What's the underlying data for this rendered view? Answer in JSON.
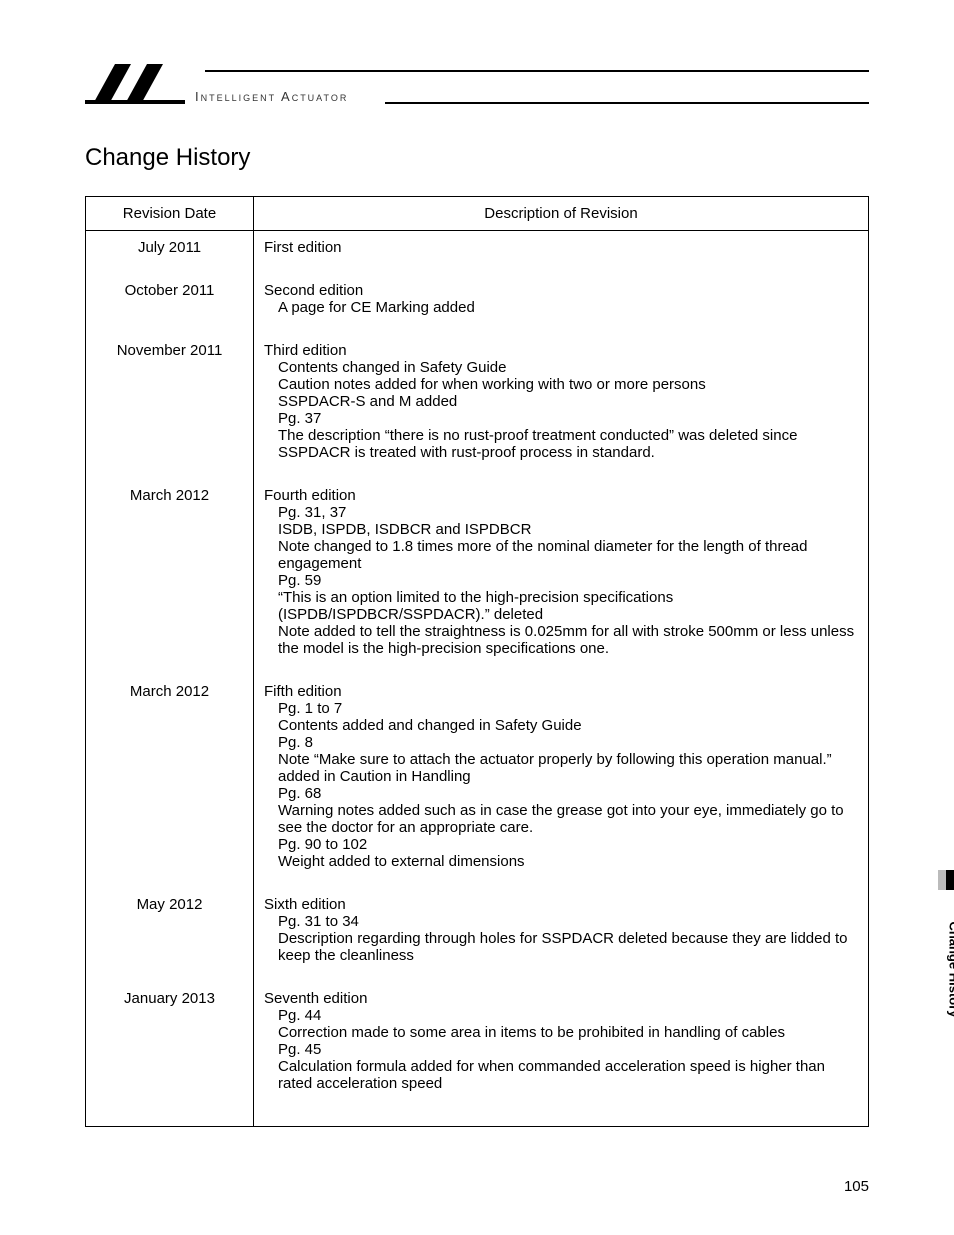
{
  "brand": "Intelligent Actuator",
  "page_title": "Change History",
  "side_tab_label": "Change History",
  "page_number": "105",
  "columns": {
    "date": "Revision Date",
    "desc": "Description of Revision"
  },
  "revisions": [
    {
      "date": "July 2011",
      "head": "First edition",
      "lines": []
    },
    {
      "date": "October 2011",
      "head": "Second edition",
      "lines": [
        "A page for CE Marking added"
      ]
    },
    {
      "date": "November 2011",
      "head": "Third edition",
      "lines": [
        "Contents changed in Safety Guide",
        "Caution notes added for when working with two or more persons",
        "SSPDACR-S and M added",
        "Pg. 37",
        "The description “there is no rust-proof treatment conducted” was deleted since SSPDACR is treated with rust-proof process in standard."
      ]
    },
    {
      "date": "March 2012",
      "head": "Fourth edition",
      "lines": [
        "Pg. 31, 37",
        "ISDB, ISPDB, ISDBCR and ISPDBCR",
        "Note changed to 1.8 times more of the nominal diameter for the length of thread engagement",
        "Pg. 59",
        "“This is an option limited to the high-precision specifications (ISPDB/ISPDBCR/SSPDACR).” deleted",
        "Note added to tell the straightness is 0.025mm for all with stroke 500mm or less unless the model is the high-precision specifications one."
      ]
    },
    {
      "date": "March 2012",
      "head": "Fifth edition",
      "lines": [
        "Pg. 1 to 7",
        "Contents added and changed in Safety Guide",
        "Pg. 8",
        "Note “Make sure to attach the actuator properly by following this operation manual.” added in Caution in Handling",
        "Pg. 68",
        "Warning notes added such as in case the grease got into your eye, immediately go to see the doctor for an appropriate care.",
        "Pg. 90 to 102",
        "Weight added to external dimensions"
      ]
    },
    {
      "date": "May 2012",
      "head": "Sixth edition",
      "lines": [
        "Pg. 31 to 34",
        "Description regarding through holes for SSPDACR deleted because they are lidded to keep the cleanliness"
      ]
    },
    {
      "date": "January 2013",
      "head": "Seventh edition",
      "lines": [
        "Pg. 44",
        "Correction made to some area in items to be prohibited in handling of cables",
        "Pg. 45",
        "Calculation formula added for when commanded acceleration speed is higher than rated acceleration speed"
      ]
    }
  ]
}
